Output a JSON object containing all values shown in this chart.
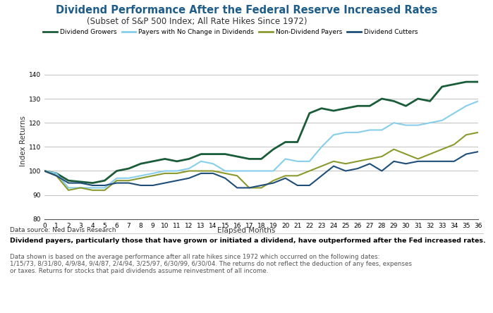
{
  "title": "Dividend Performance After the Federal Reserve Increased Rates",
  "subtitle": "(Subset of S&P 500 Index; All Rate Hikes Since 1972)",
  "ylabel": "Index Returns",
  "xlabel": "Elapsed Months",
  "datasource": "Data source: Ned Davis Research",
  "ylim": [
    80,
    145
  ],
  "xlim": [
    0,
    36
  ],
  "yticks": [
    80,
    90,
    100,
    110,
    120,
    130,
    140
  ],
  "xticks": [
    0,
    1,
    2,
    3,
    4,
    5,
    6,
    7,
    8,
    9,
    10,
    11,
    12,
    13,
    14,
    15,
    16,
    17,
    18,
    19,
    20,
    21,
    22,
    23,
    24,
    25,
    26,
    27,
    28,
    29,
    30,
    31,
    32,
    33,
    34,
    35,
    36
  ],
  "title_color": "#1e5c8a",
  "background_color": "#ffffff",
  "footer_bold": "Dividend payers, particularly those that have grown or initiated a dividend, have outperformed after the Fed increased rates.",
  "footer_normal_line1": "Data shown is based on the average performance after all rate hikes since 1972 which occurred on the following dates:",
  "footer_normal_line2": "1/15/73, 8/31/80, 4/9/84, 9/4/87, 2/4/94, 3/25/97, 6/30/99, 6/30/04. The returns do not reflect the deduction of any fees, expenses",
  "footer_normal_line3": "or taxes. Returns for stocks that paid dividends assume reinvestment of all income.",
  "series": [
    {
      "label": "Dividend Growers",
      "color": "#1a5c38",
      "linewidth": 2.0,
      "values": [
        100,
        99,
        96,
        95.5,
        95,
        96,
        100,
        101,
        103,
        104,
        105,
        104,
        105,
        107,
        107,
        107,
        106,
        105,
        105,
        109,
        112,
        112,
        124,
        126,
        125,
        126,
        127,
        127,
        130,
        129,
        127,
        130,
        129,
        135,
        136,
        137,
        137
      ]
    },
    {
      "label": "Payers with No Change in Dividends",
      "color": "#87ceeb",
      "linewidth": 1.5,
      "values": [
        100,
        99,
        93,
        93,
        93,
        93,
        97,
        97,
        98,
        99,
        100,
        100,
        101,
        104,
        103,
        100,
        100,
        100,
        100,
        100,
        105,
        104,
        104,
        110,
        115,
        116,
        116,
        117,
        117,
        120,
        119,
        119,
        120,
        121,
        124,
        127,
        129
      ]
    },
    {
      "label": "Non-Dividend Payers",
      "color": "#8b9a2e",
      "linewidth": 1.5,
      "values": [
        100,
        98,
        92,
        93,
        92,
        92,
        96,
        96,
        97,
        98,
        99,
        99,
        100,
        100,
        100,
        99,
        98,
        93,
        93,
        96,
        98,
        98,
        100,
        102,
        104,
        103,
        104,
        105,
        106,
        109,
        107,
        105,
        107,
        109,
        111,
        115,
        116
      ]
    },
    {
      "label": "Dividend Cutters",
      "color": "#1f4e79",
      "linewidth": 1.5,
      "values": [
        100,
        98,
        95,
        95,
        94,
        94,
        95,
        95,
        94,
        94,
        95,
        96,
        97,
        99,
        99,
        97,
        93,
        93,
        94,
        95,
        97,
        94,
        94,
        98,
        102,
        100,
        101,
        103,
        100,
        104,
        103,
        104,
        104,
        104,
        104,
        107,
        108
      ]
    }
  ],
  "legend_items": [
    {
      "label": "Dividend Growers",
      "color": "#1a5c38"
    },
    {
      "label": "Payers with No Change in Dividends",
      "color": "#87ceeb"
    },
    {
      "label": "Non-Dividend Payers",
      "color": "#8b9a2e"
    },
    {
      "label": "Dividend Cutters",
      "color": "#1f4e79"
    }
  ],
  "gray_bar_color": "#9e9e9e",
  "footer_bold_color": "#000000",
  "footer_normal_color": "#555555"
}
